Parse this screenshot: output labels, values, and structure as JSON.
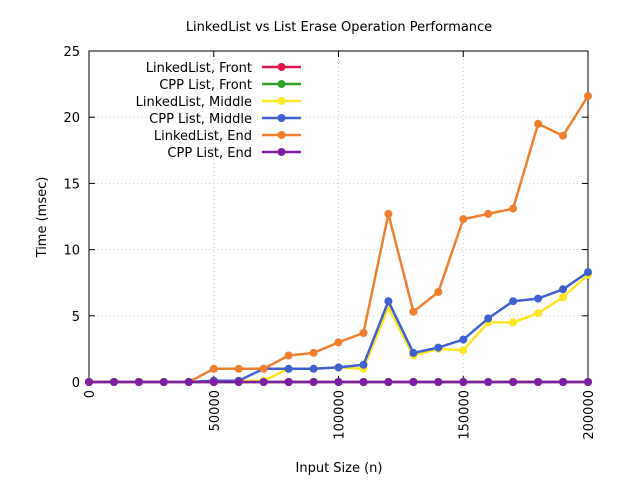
{
  "chart_data": {
    "type": "line",
    "title": "LinkedList vs List Erase Operation Performance",
    "xlabel": "Input Size (n)",
    "ylabel": "Time (msec)",
    "xlim": [
      0,
      200000
    ],
    "ylim": [
      0,
      25
    ],
    "xticks": [
      0,
      50000,
      100000,
      150000,
      200000
    ],
    "yticks": [
      0,
      5,
      10,
      15,
      20,
      25
    ],
    "grid": true,
    "legend_position": "top-left",
    "x": [
      0,
      10000,
      20000,
      30000,
      40000,
      50000,
      60000,
      70000,
      80000,
      90000,
      100000,
      110000,
      120000,
      130000,
      140000,
      150000,
      160000,
      170000,
      180000,
      190000,
      200000
    ],
    "series": [
      {
        "name": "LinkedList, Front",
        "color": "#e0144a",
        "values": [
          0,
          0,
          0,
          0,
          0,
          0,
          0,
          0,
          0,
          0,
          0,
          0,
          0,
          0,
          0,
          0,
          0,
          0,
          0,
          0,
          0
        ]
      },
      {
        "name": "CPP List, Front",
        "color": "#33a02c",
        "values": [
          0,
          0,
          0,
          0,
          0,
          0,
          0,
          0,
          0,
          0,
          0,
          0,
          0,
          0,
          0,
          0,
          0,
          0,
          0,
          0,
          0
        ]
      },
      {
        "name": "LinkedList, Middle",
        "color": "#fde725",
        "values": [
          0,
          0,
          0,
          0,
          0,
          0.1,
          0.1,
          0.1,
          1.0,
          1.0,
          1.1,
          1.0,
          5.6,
          2.0,
          2.5,
          2.4,
          4.5,
          4.5,
          5.2,
          6.4,
          8.1
        ]
      },
      {
        "name": "CPP List, Middle",
        "color": "#4060d0",
        "values": [
          0,
          0,
          0,
          0,
          0,
          0.1,
          0.1,
          1.0,
          1.0,
          1.0,
          1.1,
          1.3,
          6.1,
          2.2,
          2.6,
          3.2,
          4.8,
          6.1,
          6.3,
          7.0,
          8.3
        ]
      },
      {
        "name": "LinkedList, End",
        "color": "#f08030",
        "values": [
          0,
          0,
          0,
          0,
          0,
          1.0,
          1.0,
          1.0,
          2.0,
          2.2,
          3.0,
          3.7,
          12.7,
          5.3,
          6.8,
          12.3,
          12.7,
          13.1,
          19.5,
          18.6,
          21.6
        ]
      },
      {
        "name": "CPP List, End",
        "color": "#7e1fa3",
        "values": [
          0,
          0,
          0,
          0,
          0,
          0,
          0,
          0,
          0,
          0,
          0,
          0,
          0,
          0,
          0,
          0,
          0,
          0,
          0,
          0,
          0
        ]
      }
    ]
  }
}
